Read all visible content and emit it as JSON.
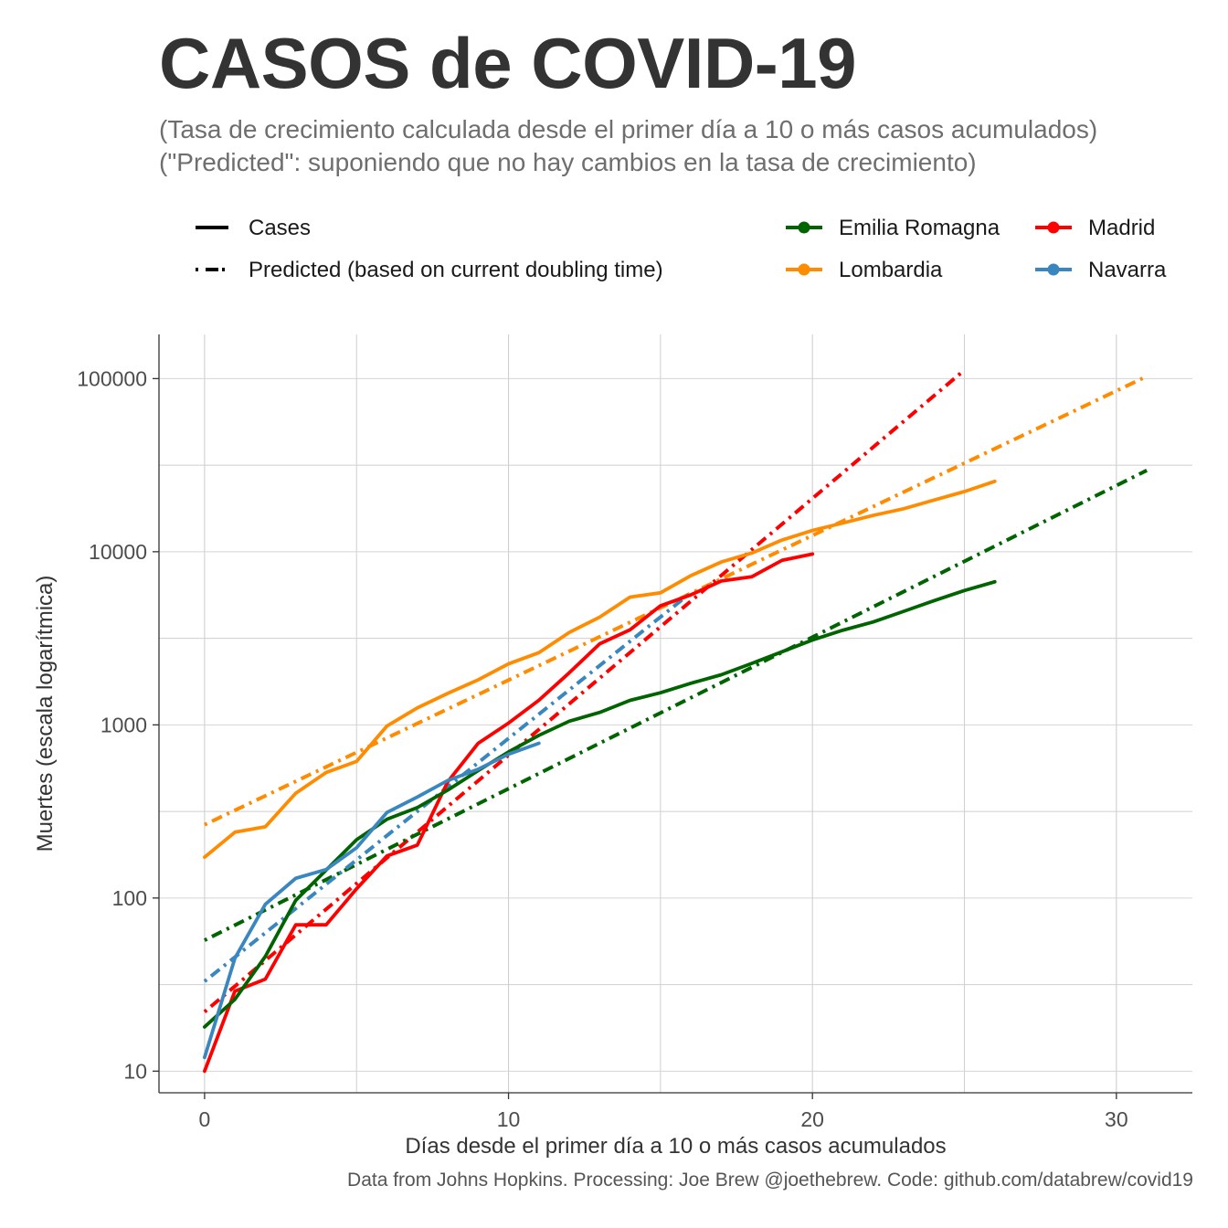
{
  "title": "CASOS de COVID-19",
  "subtitle_line1": "(Tasa de crecimiento calculada desde el primer día a 10 o más casos acumulados)",
  "subtitle_line2": "(\"Predicted\": suponiendo que no hay cambios en la tasa de crecimiento)",
  "caption": "Data from Johns Hopkins. Processing: Joe Brew @joethebrew. Code: github.com/databrew/covid19",
  "legend": {
    "linetypes": [
      {
        "label": "Cases",
        "style": "solid"
      },
      {
        "label": "Predicted (based on current doubling time)",
        "style": "dotdash"
      }
    ],
    "regions": [
      {
        "label": "Emilia Romagna",
        "color": "#006400"
      },
      {
        "label": "Madrid",
        "color": "#ff0000"
      },
      {
        "label": "Lombardia",
        "color": "#ff8c00"
      },
      {
        "label": "Navarra",
        "color": "#3a87c0"
      }
    ]
  },
  "chart_data": {
    "type": "line",
    "xlabel": "Días desde el primer día a 10 o más casos acumulados",
    "ylabel": "Muertes (escala logarítmica)",
    "x_scale": "linear",
    "y_scale": "log10",
    "xlim": [
      -1.5,
      32.5
    ],
    "ylim": [
      7.5,
      180000
    ],
    "x_ticks": [
      0,
      10,
      20,
      30
    ],
    "x_tick_labels": [
      "0",
      "10",
      "20",
      "30"
    ],
    "y_ticks": [
      10,
      100,
      1000,
      10000,
      100000
    ],
    "y_tick_labels": [
      "10",
      "100",
      "1000",
      "10000",
      "100000"
    ],
    "grid": true,
    "series": [
      {
        "name": "Lombardia",
        "color": "#ff8c00",
        "kind": "cases",
        "x": [
          0,
          1,
          2,
          3,
          4,
          5,
          6,
          7,
          8,
          9,
          10,
          11,
          12,
          13,
          14,
          15,
          16,
          17,
          18,
          19,
          20,
          21,
          22,
          23,
          24,
          25,
          26
        ],
        "y": [
          172,
          240,
          258,
          403,
          531,
          615,
          984,
          1254,
          1520,
          1820,
          2251,
          2612,
          3420,
          4189,
          5469,
          5791,
          7280,
          8725,
          9820,
          11685,
          13272,
          14649,
          16220,
          17713,
          19884,
          22264,
          25515
        ]
      },
      {
        "name": "Lombardia",
        "color": "#ff8c00",
        "kind": "predicted",
        "x": [
          0,
          31
        ],
        "y": [
          265,
          103000
        ]
      },
      {
        "name": "Madrid",
        "color": "#ff0000",
        "kind": "cases",
        "x": [
          0,
          1,
          2,
          3,
          4,
          5,
          6,
          7,
          8,
          9,
          10,
          11,
          12,
          13,
          14,
          15,
          16,
          17,
          18,
          19,
          20
        ],
        "y": [
          10,
          29,
          34,
          70,
          70,
          113,
          175,
          202,
          469,
          782,
          1024,
          1388,
          2000,
          2940,
          3544,
          4871,
          5637,
          6777,
          7165,
          8921,
          9702
        ]
      },
      {
        "name": "Madrid",
        "color": "#ff0000",
        "kind": "predicted",
        "x": [
          0,
          25
        ],
        "y": [
          22,
          112000
        ]
      },
      {
        "name": "Emilia Romagna",
        "color": "#006400",
        "kind": "cases",
        "x": [
          0,
          1,
          2,
          3,
          4,
          5,
          6,
          7,
          8,
          9,
          10,
          11,
          12,
          13,
          14,
          15,
          16,
          17,
          18,
          19,
          20,
          21,
          22,
          23,
          24,
          25,
          26
        ],
        "y": [
          18,
          26,
          46,
          97,
          145,
          217,
          285,
          333,
          420,
          544,
          698,
          870,
          1050,
          1180,
          1386,
          1533,
          1739,
          1947,
          2263,
          2644,
          3093,
          3522,
          3931,
          4525,
          5214,
          5968,
          6705
        ]
      },
      {
        "name": "Emilia Romagna",
        "color": "#006400",
        "kind": "predicted",
        "x": [
          0,
          31
        ],
        "y": [
          57,
          29500
        ]
      },
      {
        "name": "Navarra",
        "color": "#3a87c0",
        "kind": "cases",
        "x": [
          0,
          1,
          2,
          3,
          4,
          5,
          6,
          7,
          8,
          9,
          10,
          11
        ],
        "y": [
          12,
          45,
          92,
          130,
          146,
          195,
          312,
          383,
          477,
          554,
          677,
          783
        ]
      },
      {
        "name": "Navarra",
        "color": "#3a87c0",
        "kind": "predicted",
        "x": [
          0,
          16
        ],
        "y": [
          33,
          5800
        ]
      }
    ]
  }
}
